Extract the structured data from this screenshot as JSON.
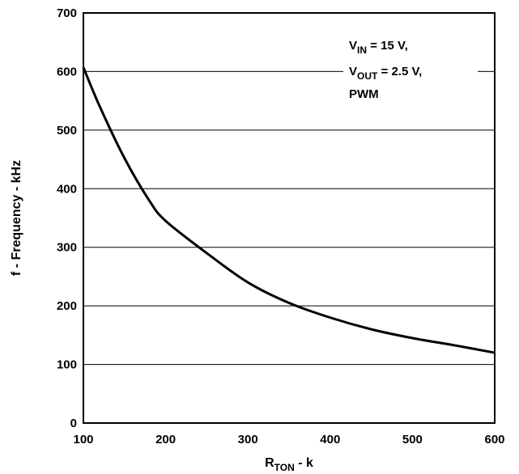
{
  "chart_data": {
    "type": "line",
    "xlabel": {
      "main": "R",
      "sub": "TON",
      "suffix": " - k"
    },
    "ylabel": "f - Frequency - kHz",
    "xlim": [
      100,
      600
    ],
    "ylim": [
      0,
      700
    ],
    "xticks": [
      100,
      200,
      300,
      400,
      500,
      600
    ],
    "yticks": [
      0,
      100,
      200,
      300,
      400,
      500,
      600,
      700
    ],
    "grid": {
      "horizontal": true,
      "vertical": false
    },
    "annotation": [
      {
        "main": "V",
        "sub": "IN",
        "rest": " = 15 V,"
      },
      {
        "main": "V",
        "sub": "OUT",
        "rest": " = 2.5 V,"
      },
      {
        "main": "PWM",
        "sub": "",
        "rest": ""
      }
    ],
    "series": [
      {
        "x": [
          100,
          120,
          150,
          180,
          200,
          250,
          300,
          350,
          400,
          450,
          500,
          550,
          600
        ],
        "y": [
          607,
          540,
          452,
          380,
          345,
          290,
          240,
          205,
          180,
          160,
          145,
          133,
          120
        ]
      }
    ]
  }
}
